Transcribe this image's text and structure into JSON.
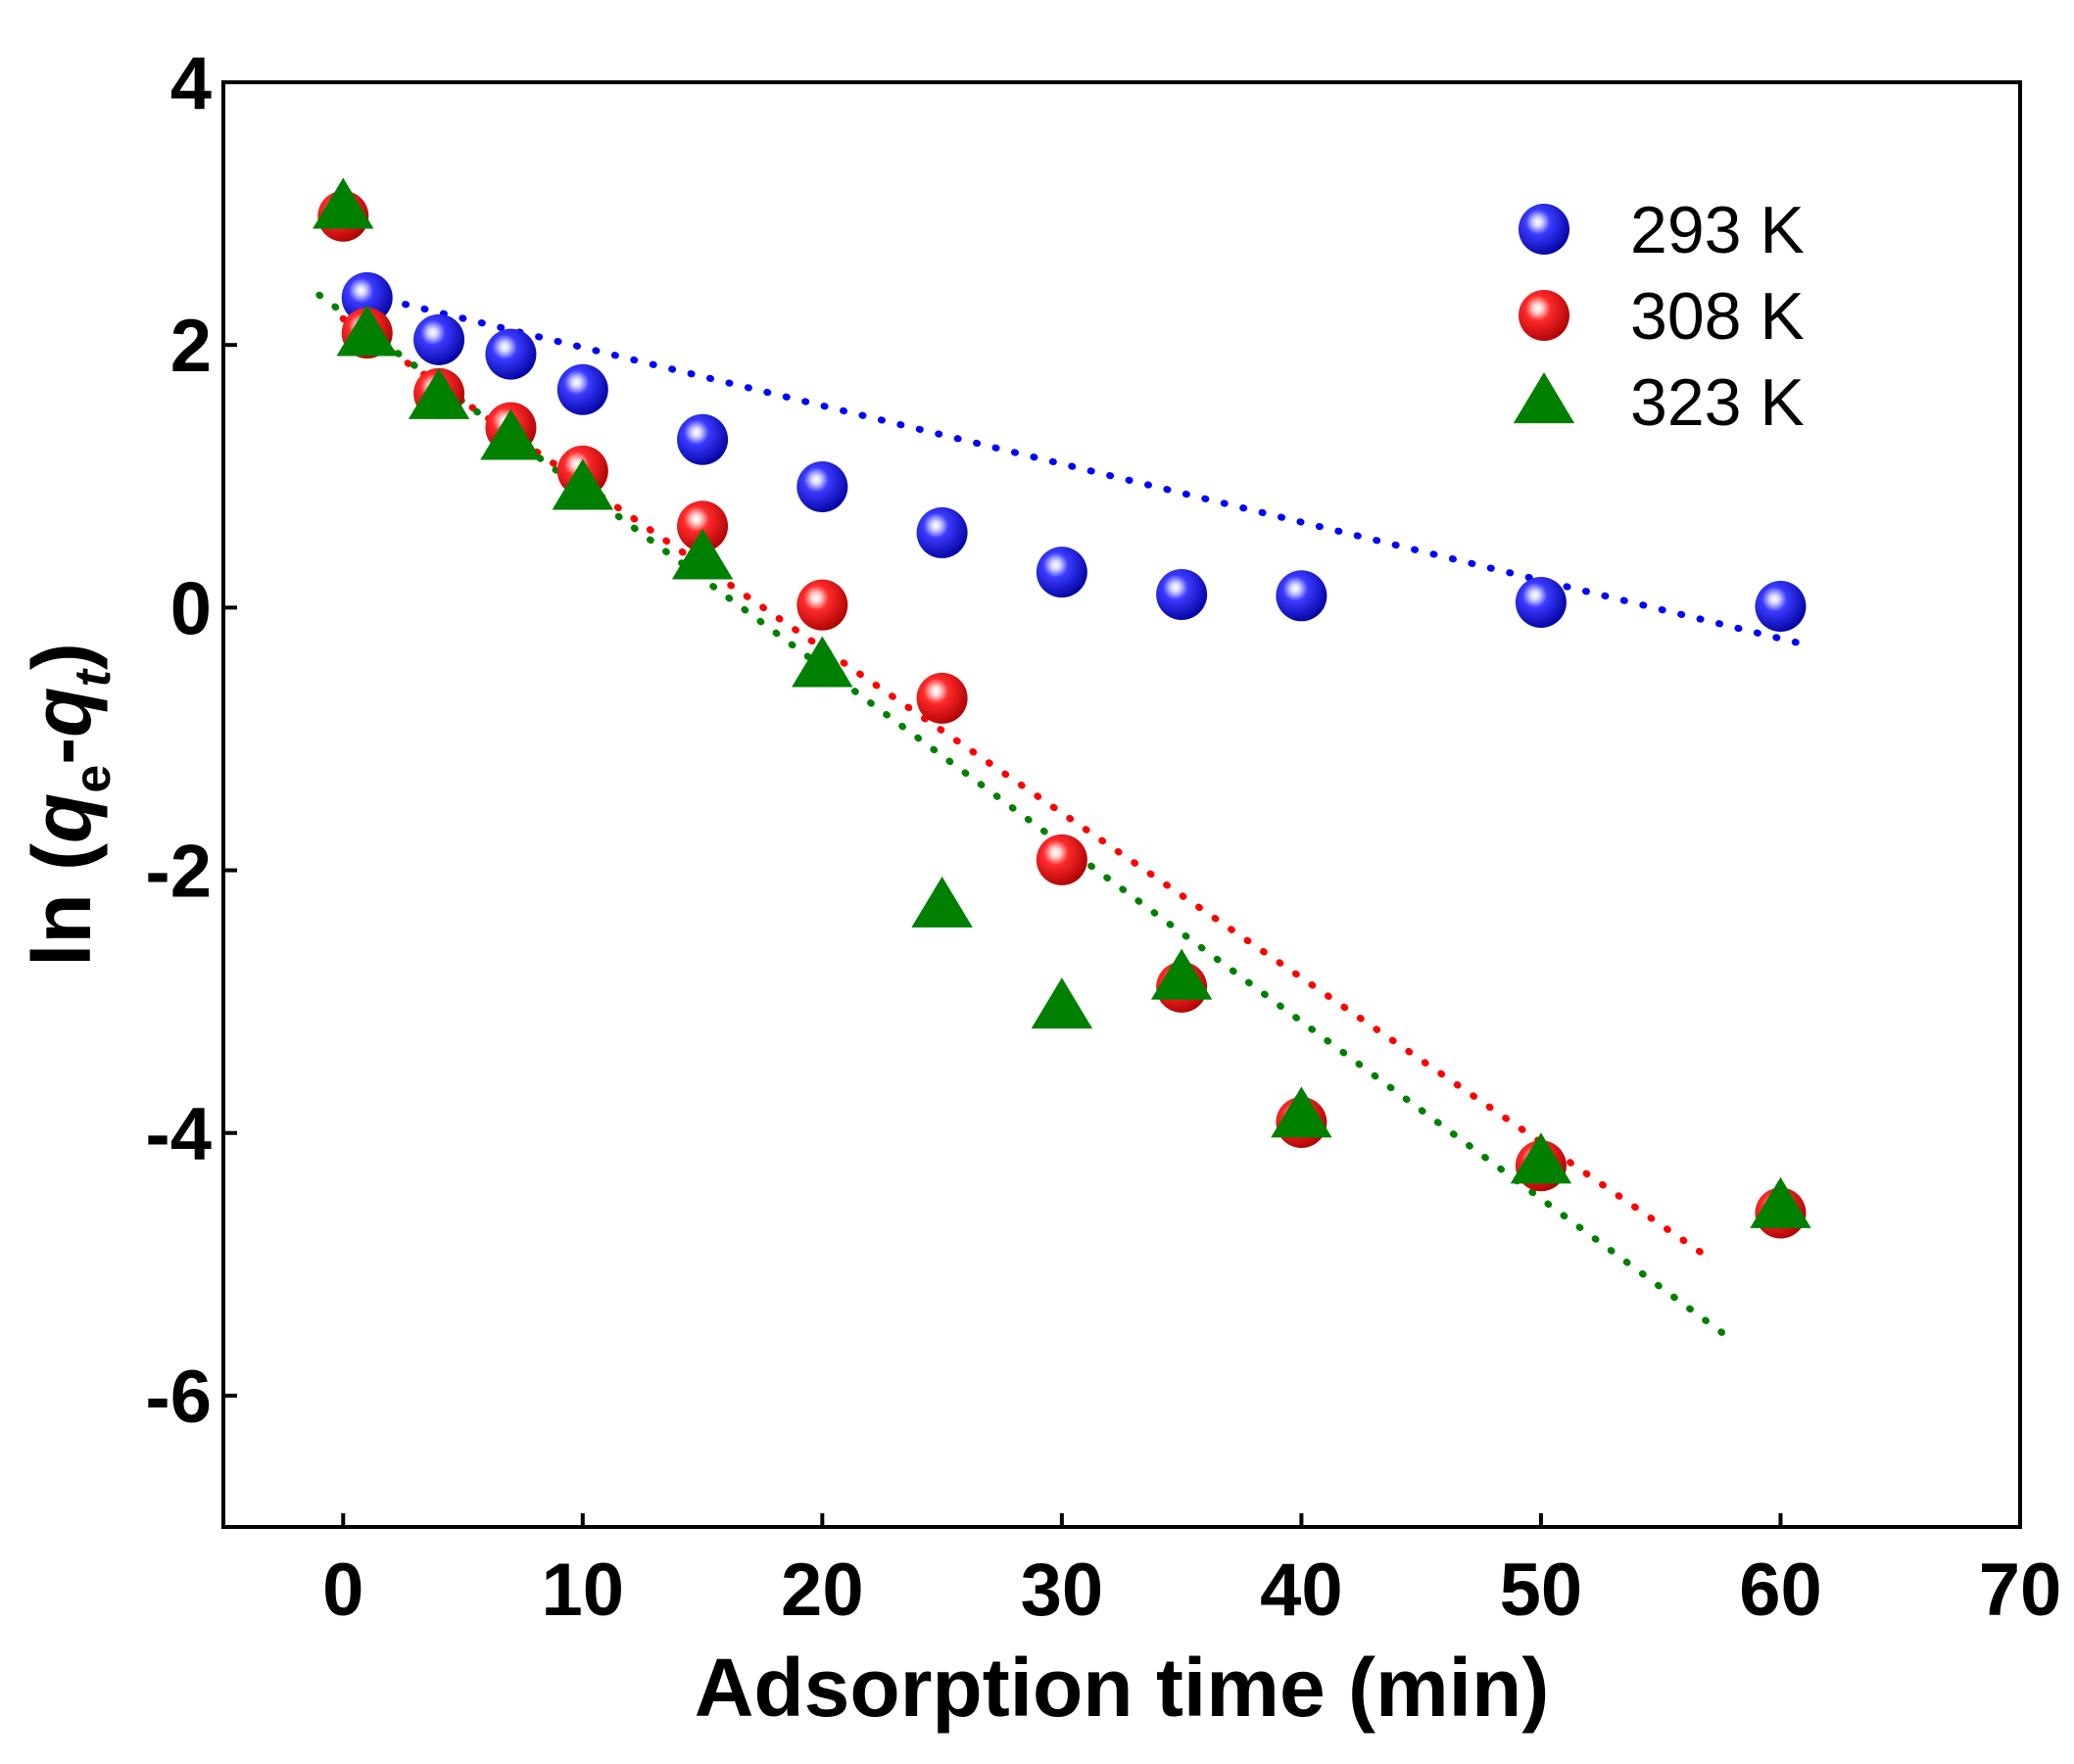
{
  "chart_data": {
    "type": "scatter",
    "title": "",
    "xlabel": "Adsorption time (min)",
    "ylabel": "ln (qe-qt)",
    "ylabel_parts": {
      "prefix": "ln (",
      "q1": "q",
      "sub1": "e",
      "dash": "-",
      "q2": "q",
      "sub2": "t",
      "suffix": ")"
    },
    "xlim": [
      -5,
      70
    ],
    "ylim": [
      -7,
      4
    ],
    "xticks": [
      0,
      10,
      20,
      30,
      40,
      50,
      60,
      70
    ],
    "yticks": [
      -6,
      -4,
      -2,
      0,
      2,
      4
    ],
    "grid": false,
    "legend_position": "top-right",
    "series": [
      {
        "name": "293 K",
        "marker": "sphere",
        "color": "#0000ff",
        "x": [
          1,
          4,
          7,
          10,
          15,
          20,
          25,
          30,
          35,
          40,
          50,
          60
        ],
        "y": [
          2.36,
          2.04,
          1.93,
          1.66,
          1.28,
          0.92,
          0.57,
          0.27,
          0.1,
          0.09,
          0.04,
          0.01
        ],
        "fit": {
          "x": [
            1,
            61
          ],
          "y": [
            2.38,
            -0.28
          ]
        }
      },
      {
        "name": "308 K",
        "marker": "sphere",
        "color": "#ff0000",
        "x": [
          0,
          1,
          4,
          7,
          10,
          15,
          20,
          25,
          30,
          35,
          40,
          50,
          60
        ],
        "y": [
          2.98,
          2.09,
          1.63,
          1.37,
          1.04,
          0.62,
          0.02,
          -0.69,
          -1.92,
          -2.89,
          -3.92,
          -4.25,
          -4.61
        ],
        "fit": {
          "x": [
            0,
            57
          ],
          "y": [
            2.2,
            -4.95
          ]
        }
      },
      {
        "name": "323 K",
        "marker": "triangle",
        "color": "#008000",
        "x": [
          0,
          1,
          4,
          7,
          10,
          15,
          20,
          25,
          30,
          35,
          40,
          50,
          60
        ],
        "y": [
          3.05,
          2.08,
          1.6,
          1.29,
          0.91,
          0.38,
          -0.44,
          -2.27,
          -3.04,
          -2.82,
          -3.87,
          -4.22,
          -4.56
        ],
        "fit": {
          "x": [
            -1,
            58
          ],
          "y": [
            2.38,
            -5.58
          ]
        }
      }
    ]
  }
}
